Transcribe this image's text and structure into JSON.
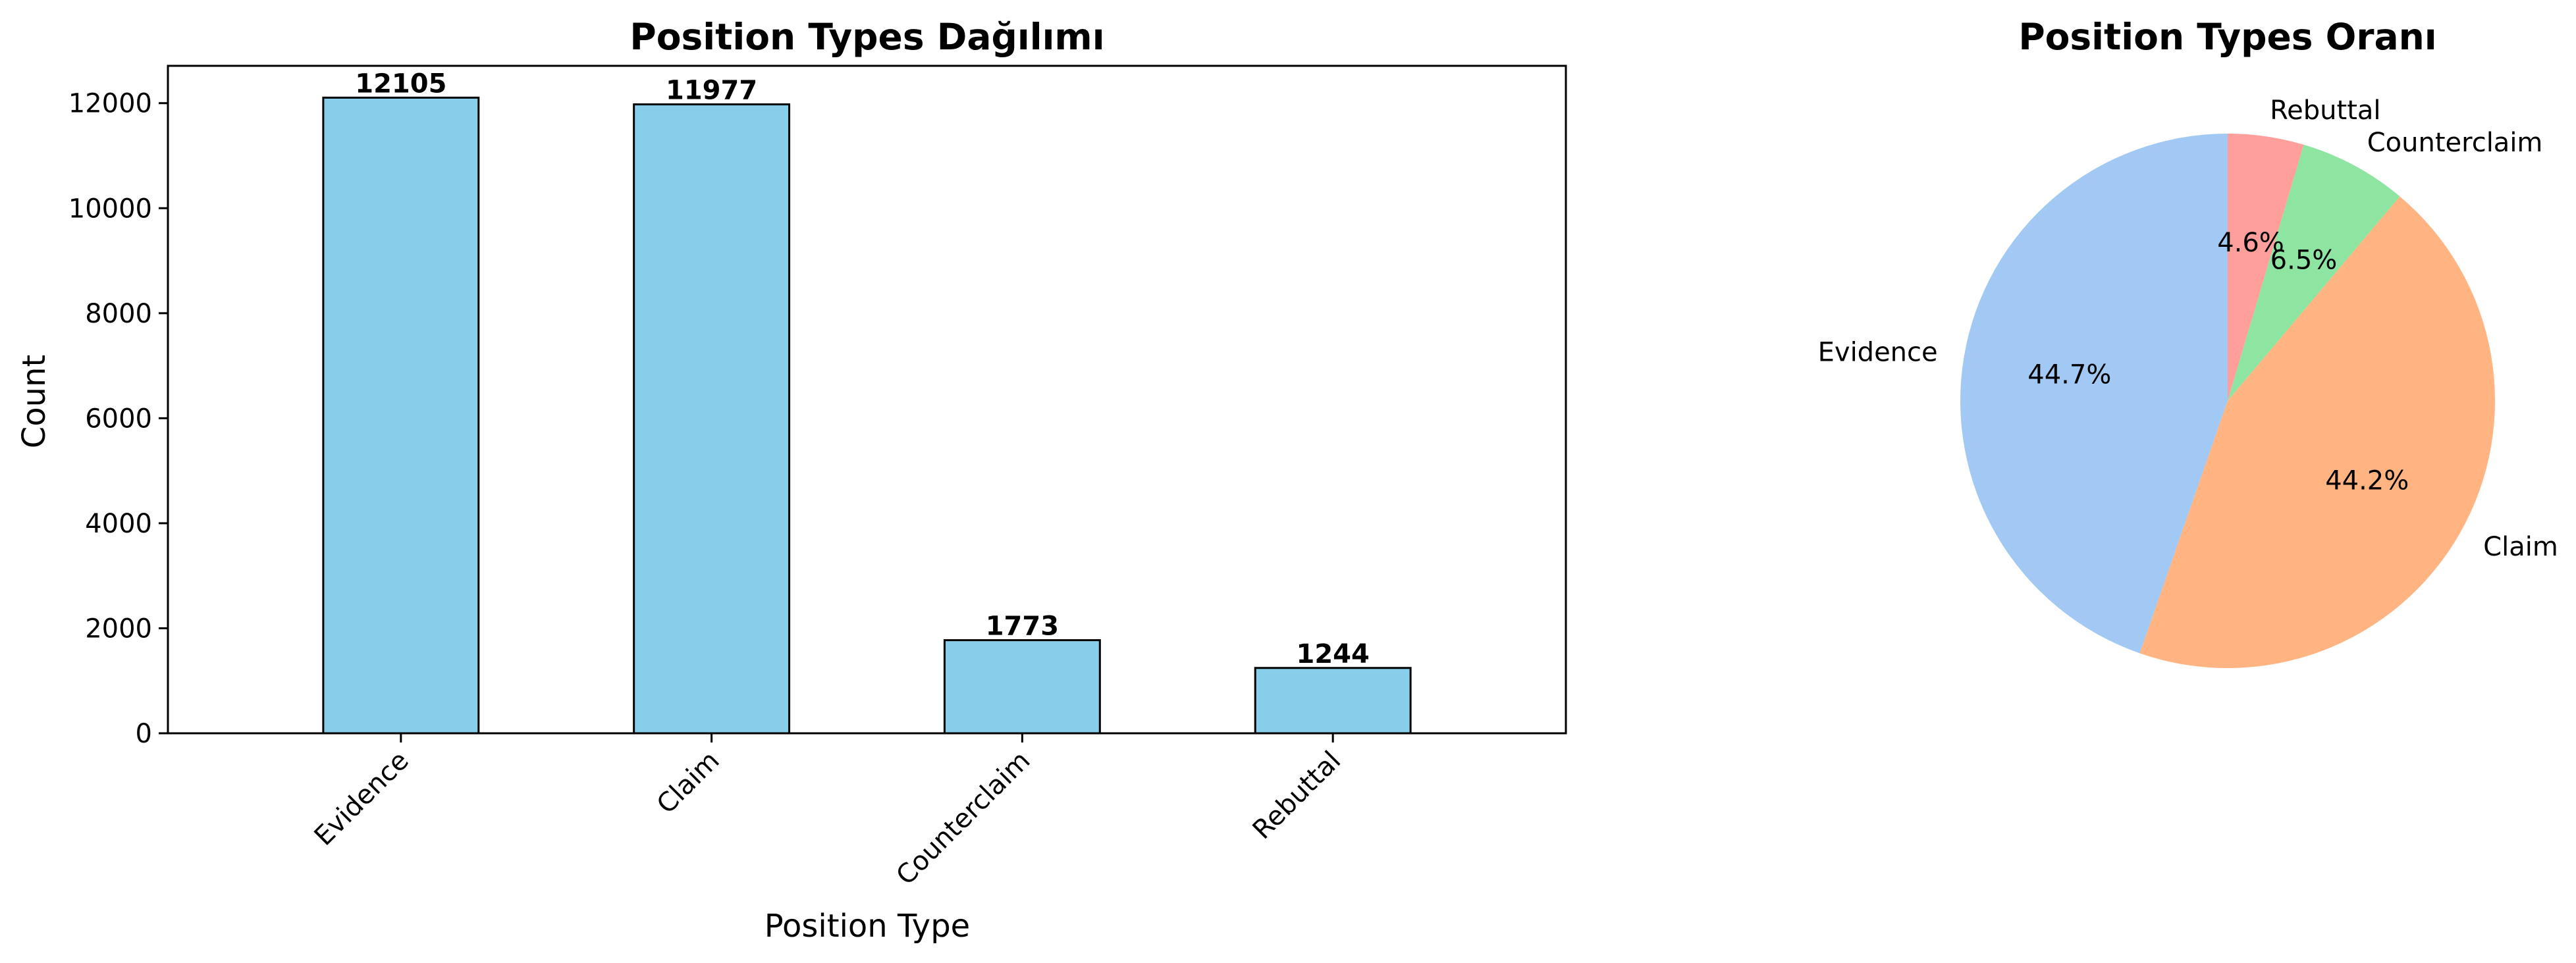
{
  "chart_data": [
    {
      "type": "bar",
      "title": "Position Types Dağılımı",
      "xlabel": "Position Type",
      "ylabel": "Count",
      "categories": [
        "Evidence",
        "Claim",
        "Counterclaim",
        "Rebuttal"
      ],
      "values": [
        12105,
        11977,
        1773,
        1244
      ],
      "value_labels": [
        "12105",
        "11977",
        "1773",
        "1244"
      ],
      "ylim": [
        0,
        12711
      ],
      "yticks": [
        0,
        2000,
        4000,
        6000,
        8000,
        10000,
        12000
      ],
      "bar_color": "#87CEEB",
      "edge_color": "#000000",
      "grid": false
    },
    {
      "type": "pie",
      "title": "Position Types Oranı",
      "labels": [
        "Evidence",
        "Claim",
        "Counterclaim",
        "Rebuttal"
      ],
      "values": [
        12105,
        11977,
        1773,
        1244
      ],
      "percent_labels": [
        "44.7%",
        "44.2%",
        "6.5%",
        "4.6%"
      ],
      "colors": [
        "#A1C9F4",
        "#FFB482",
        "#8DE5A1",
        "#FF9F9B"
      ],
      "start_angle": 90,
      "direction": "counterclockwise"
    }
  ]
}
